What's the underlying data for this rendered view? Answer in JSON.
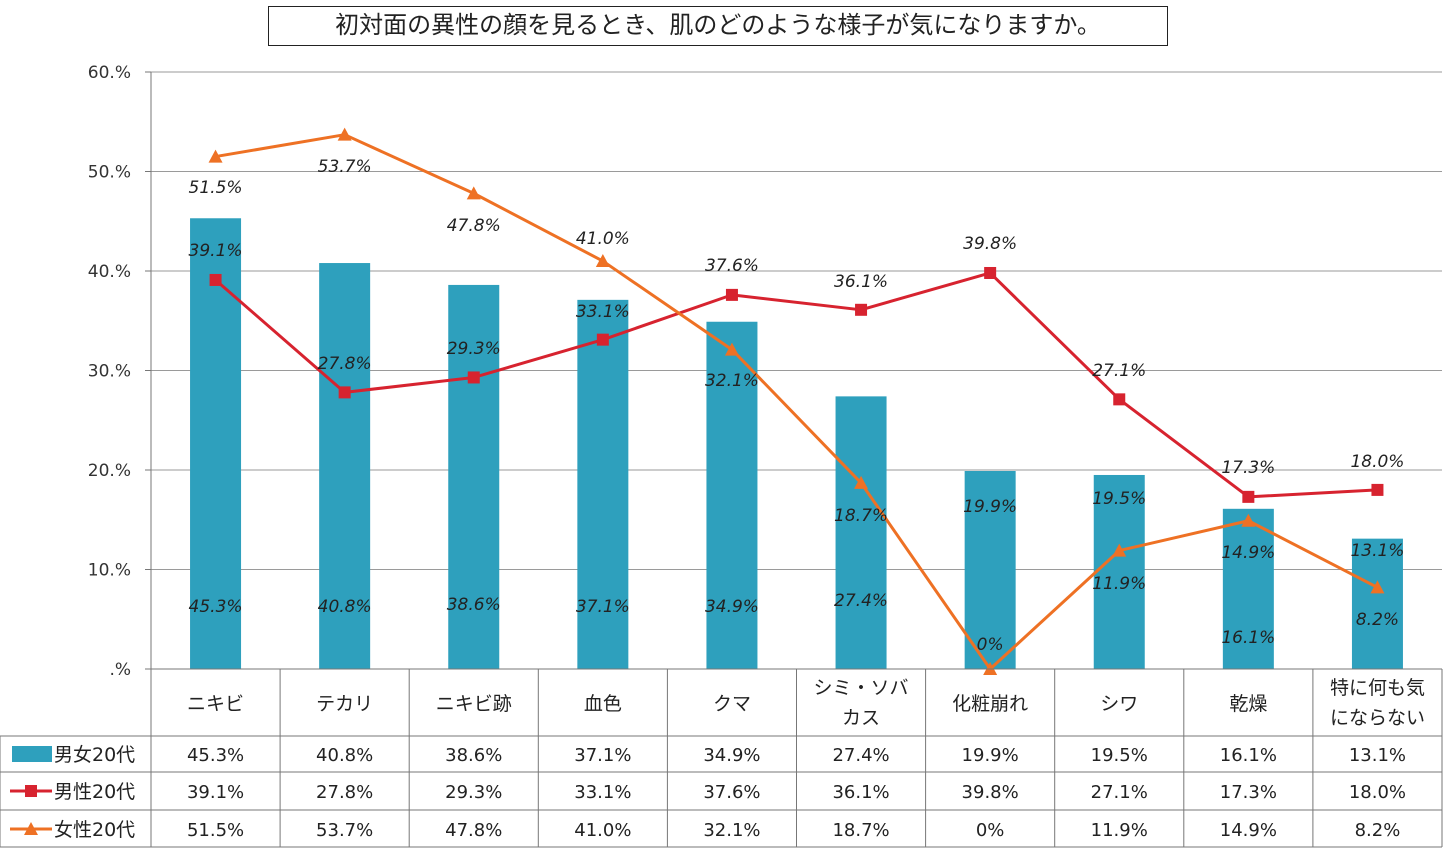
{
  "title": "初対面の異性の顔を見るとき、肌のどのような様子が気になりますか。",
  "chart_data": {
    "type": "bar",
    "title": "初対面の異性の顔を見るとき、肌のどのような様子が気になりますか。",
    "categories": [
      [
        "ニキビ"
      ],
      [
        "テカリ"
      ],
      [
        "ニキビ跡"
      ],
      [
        "血色"
      ],
      [
        "クマ"
      ],
      [
        "シミ・ソバ",
        "カス"
      ],
      [
        "化粧崩れ"
      ],
      [
        "シワ"
      ],
      [
        "乾燥"
      ],
      [
        "特に何も気",
        "にならない"
      ]
    ],
    "ylim": [
      0,
      60
    ],
    "yticks": [
      0,
      10,
      20,
      30,
      40,
      50,
      60
    ],
    "ytick_labels": [
      ".%",
      "10.%",
      "20.%",
      "30.%",
      "40.%",
      "50.%",
      "60.%"
    ],
    "grid": true,
    "series": [
      {
        "name": "男女20代",
        "kind": "bar",
        "color": "#2ea0bd",
        "values": [
          45.3,
          40.8,
          38.6,
          37.1,
          34.9,
          27.4,
          19.9,
          19.5,
          16.1,
          13.1
        ],
        "labels": [
          "45.3%",
          "40.8%",
          "38.6%",
          "37.1%",
          "34.9%",
          "27.4%",
          "19.9%",
          "19.5%",
          "16.1%",
          "13.1%"
        ]
      },
      {
        "name": "男性20代",
        "kind": "line",
        "marker": "square",
        "color": "#d7232f",
        "values": [
          39.1,
          27.8,
          29.3,
          33.1,
          37.6,
          36.1,
          39.8,
          27.1,
          17.3,
          18.0
        ],
        "labels": [
          "39.1%",
          "27.8%",
          "29.3%",
          "33.1%",
          "37.6%",
          "36.1%",
          "39.8%",
          "27.1%",
          "17.3%",
          "18.0%"
        ]
      },
      {
        "name": "女性20代",
        "kind": "line",
        "marker": "triangle",
        "color": "#ee7124",
        "values": [
          51.5,
          53.7,
          47.8,
          41.0,
          32.1,
          18.7,
          0,
          11.9,
          14.9,
          8.2
        ],
        "labels": [
          "51.5%",
          "53.7%",
          "47.8%",
          "41.0%",
          "32.1%",
          "18.7%",
          "0%",
          "11.9%",
          "14.9%",
          "8.2%"
        ]
      }
    ]
  }
}
